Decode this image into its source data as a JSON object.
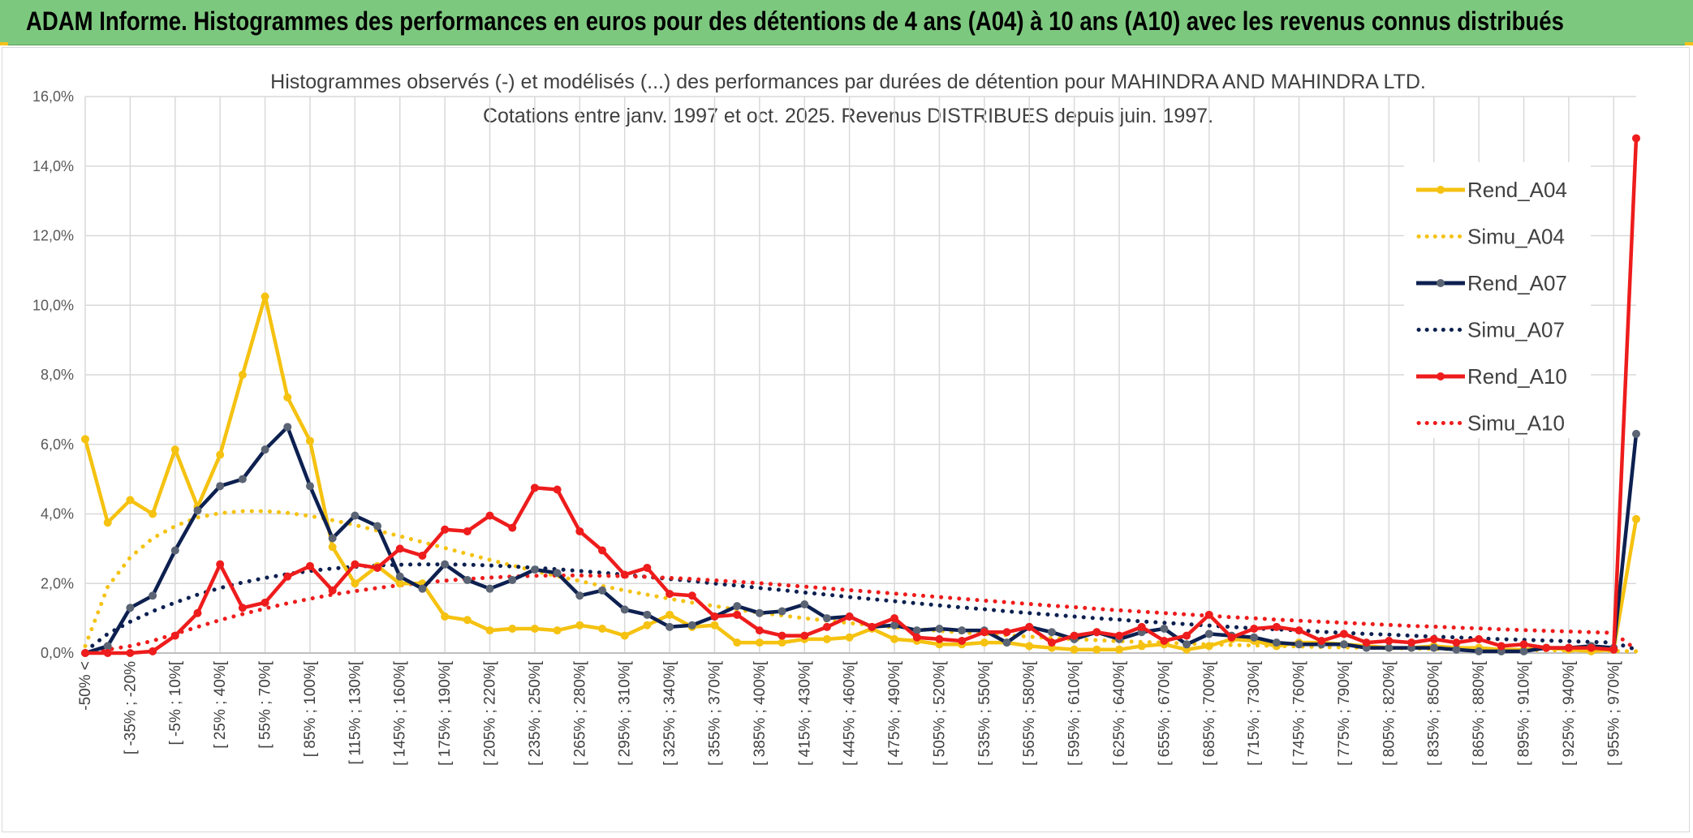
{
  "header": {
    "title": "ADAM Informe. Histogrammes des performances en euros pour des détentions de 4 ans (A04) à 10 ans (A10) avec les revenus connus distribués"
  },
  "chart_data": {
    "type": "line",
    "title": "Histogrammes observés (-) et modélisés (...) des performances par durées de détention pour MAHINDRA AND MAHINDRA LTD.",
    "subtitle": "Cotations entre janv. 1997 et oct. 2025. Revenus DISTRIBUES depuis juin. 1997.",
    "ylim": [
      0,
      16
    ],
    "yticks": [
      0,
      2,
      4,
      6,
      8,
      10,
      12,
      14,
      16
    ],
    "ytick_labels": [
      "0,0%",
      "2,0%",
      "4,0%",
      "6,0%",
      "8,0%",
      "10,0%",
      "12,0%",
      "14,0%",
      "16,0%"
    ],
    "grid": true,
    "legend_position": "right",
    "n_points": 70,
    "tick_labels": [
      {
        "i": 0,
        "label": "-50% <"
      },
      {
        "i": 2,
        "label": "[ -35% ; -20%"
      },
      {
        "i": 4,
        "label": "[ -5% ; 10%["
      },
      {
        "i": 6,
        "label": "[ 25% ; 40%["
      },
      {
        "i": 8,
        "label": "[ 55% ; 70%["
      },
      {
        "i": 10,
        "label": "[ 85% ; 100%["
      },
      {
        "i": 12,
        "label": "[ 115% ; 130%["
      },
      {
        "i": 14,
        "label": "[ 145% ; 160%["
      },
      {
        "i": 16,
        "label": "[ 175% ; 190%["
      },
      {
        "i": 18,
        "label": "[ 205% ; 220%["
      },
      {
        "i": 20,
        "label": "[ 235% ; 250%["
      },
      {
        "i": 22,
        "label": "[ 265% ; 280%["
      },
      {
        "i": 24,
        "label": "[ 295% ; 310%["
      },
      {
        "i": 26,
        "label": "[ 325% ; 340%["
      },
      {
        "i": 28,
        "label": "[ 355% ; 370%["
      },
      {
        "i": 30,
        "label": "[ 385% ; 400%["
      },
      {
        "i": 32,
        "label": "[ 415% ; 430%["
      },
      {
        "i": 34,
        "label": "[ 445% ; 460%["
      },
      {
        "i": 36,
        "label": "[ 475% ; 490%["
      },
      {
        "i": 38,
        "label": "[ 505% ; 520%["
      },
      {
        "i": 40,
        "label": "[ 535% ; 550%["
      },
      {
        "i": 42,
        "label": "[ 565% ; 580%["
      },
      {
        "i": 44,
        "label": "[ 595% ; 610%["
      },
      {
        "i": 46,
        "label": "[ 625% ; 640%["
      },
      {
        "i": 48,
        "label": "[ 655% ; 670%["
      },
      {
        "i": 50,
        "label": "[ 685% ; 700%["
      },
      {
        "i": 52,
        "label": "[ 715% ; 730%["
      },
      {
        "i": 54,
        "label": "[ 745% ; 760%["
      },
      {
        "i": 56,
        "label": "[ 775% ; 790%["
      },
      {
        "i": 58,
        "label": "[ 805% ; 820%["
      },
      {
        "i": 60,
        "label": "[ 835% ; 850%["
      },
      {
        "i": 62,
        "label": "[ 865% ; 880%["
      },
      {
        "i": 64,
        "label": "[ 895% ; 910%["
      },
      {
        "i": 66,
        "label": "[ 925% ; 940%["
      },
      {
        "i": 68,
        "label": "[ 955% ; 970%["
      }
    ],
    "series": [
      {
        "name": "Rend_A04",
        "style": "solid",
        "color": "#f5c211",
        "marker_color": "#f5c211",
        "values": [
          6.15,
          3.75,
          4.4,
          4.0,
          5.85,
          4.2,
          5.7,
          8.0,
          10.25,
          7.35,
          6.1,
          3.05,
          2.0,
          2.5,
          2.0,
          2.0,
          1.05,
          0.95,
          0.65,
          0.7,
          0.7,
          0.65,
          0.8,
          0.7,
          0.5,
          0.8,
          1.1,
          0.75,
          0.8,
          0.3,
          0.3,
          0.3,
          0.4,
          0.4,
          0.45,
          0.7,
          0.4,
          0.35,
          0.25,
          0.25,
          0.3,
          0.3,
          0.2,
          0.15,
          0.1,
          0.1,
          0.1,
          0.2,
          0.25,
          0.1,
          0.2,
          0.4,
          0.35,
          0.2,
          0.3,
          0.3,
          0.25,
          0.2,
          0.15,
          0.15,
          0.2,
          0.15,
          0.15,
          0.1,
          0.1,
          0.15,
          0.1,
          0.05,
          0.1,
          3.85
        ]
      },
      {
        "name": "Simu_A04",
        "style": "dotted",
        "color": "#f5c211",
        "values": [
          0.2,
          1.9,
          2.75,
          3.3,
          3.65,
          3.9,
          4.02,
          4.08,
          4.08,
          4.03,
          3.94,
          3.82,
          3.68,
          3.52,
          3.36,
          3.19,
          3.02,
          2.85,
          2.68,
          2.52,
          2.36,
          2.21,
          2.07,
          1.93,
          1.8,
          1.68,
          1.56,
          1.45,
          1.35,
          1.25,
          1.16,
          1.08,
          1.0,
          0.93,
          0.86,
          0.8,
          0.74,
          0.69,
          0.64,
          0.59,
          0.55,
          0.51,
          0.47,
          0.43,
          0.4,
          0.37,
          0.34,
          0.32,
          0.3,
          0.27,
          0.25,
          0.23,
          0.22,
          0.2,
          0.19,
          0.17,
          0.16,
          0.15,
          0.14,
          0.13,
          0.12,
          0.11,
          0.1,
          0.09,
          0.09,
          0.08,
          0.07,
          0.07,
          0.06,
          0.05
        ]
      },
      {
        "name": "Rend_A07",
        "style": "solid",
        "color": "#0d2050",
        "marker_color": "#5a6474",
        "values": [
          0.0,
          0.2,
          1.3,
          1.65,
          2.95,
          4.1,
          4.8,
          5.0,
          5.85,
          6.5,
          4.8,
          3.3,
          3.95,
          3.65,
          2.2,
          1.85,
          2.55,
          2.1,
          1.85,
          2.1,
          2.4,
          2.3,
          1.65,
          1.8,
          1.25,
          1.1,
          0.75,
          0.8,
          1.05,
          1.35,
          1.15,
          1.2,
          1.4,
          1.0,
          1.05,
          0.75,
          0.8,
          0.65,
          0.7,
          0.65,
          0.65,
          0.3,
          0.75,
          0.6,
          0.4,
          0.6,
          0.4,
          0.6,
          0.7,
          0.25,
          0.55,
          0.5,
          0.45,
          0.3,
          0.25,
          0.25,
          0.25,
          0.15,
          0.15,
          0.15,
          0.15,
          0.1,
          0.05,
          0.05,
          0.05,
          0.15,
          0.15,
          0.2,
          0.15,
          6.3
        ]
      },
      {
        "name": "Simu_A07",
        "style": "dotted",
        "color": "#0d2050",
        "values": [
          0.05,
          0.55,
          0.9,
          1.2,
          1.45,
          1.68,
          1.87,
          2.03,
          2.16,
          2.27,
          2.36,
          2.43,
          2.48,
          2.52,
          2.54,
          2.55,
          2.55,
          2.54,
          2.52,
          2.49,
          2.45,
          2.41,
          2.36,
          2.31,
          2.25,
          2.19,
          2.13,
          2.07,
          2.0,
          1.94,
          1.87,
          1.81,
          1.74,
          1.68,
          1.61,
          1.55,
          1.49,
          1.43,
          1.37,
          1.31,
          1.26,
          1.2,
          1.15,
          1.1,
          1.05,
          1.0,
          0.96,
          0.91,
          0.87,
          0.83,
          0.79,
          0.75,
          0.71,
          0.68,
          0.65,
          0.61,
          0.58,
          0.55,
          0.53,
          0.5,
          0.47,
          0.45,
          0.42,
          0.4,
          0.38,
          0.36,
          0.34,
          0.32,
          0.3,
          0.1
        ]
      },
      {
        "name": "Rend_A10",
        "style": "solid",
        "color": "#ee1c1c",
        "marker_color": "#ee1c1c",
        "values": [
          0.0,
          0.0,
          0.0,
          0.05,
          0.5,
          1.15,
          2.55,
          1.3,
          1.45,
          2.2,
          2.5,
          1.8,
          2.55,
          2.45,
          3.0,
          2.8,
          3.55,
          3.5,
          3.95,
          3.6,
          4.75,
          4.7,
          3.5,
          2.95,
          2.25,
          2.45,
          1.7,
          1.65,
          1.05,
          1.1,
          0.65,
          0.5,
          0.5,
          0.75,
          1.05,
          0.75,
          1.0,
          0.45,
          0.4,
          0.35,
          0.6,
          0.6,
          0.75,
          0.3,
          0.5,
          0.6,
          0.5,
          0.75,
          0.35,
          0.5,
          1.1,
          0.45,
          0.7,
          0.75,
          0.65,
          0.35,
          0.55,
          0.3,
          0.35,
          0.3,
          0.4,
          0.3,
          0.4,
          0.2,
          0.25,
          0.15,
          0.15,
          0.15,
          0.1,
          14.8
        ]
      },
      {
        "name": "Simu_A10",
        "style": "dotted",
        "color": "#ee1c1c",
        "values": [
          0.0,
          0.1,
          0.2,
          0.35,
          0.55,
          0.75,
          0.95,
          1.12,
          1.28,
          1.43,
          1.56,
          1.68,
          1.78,
          1.87,
          1.95,
          2.02,
          2.08,
          2.13,
          2.17,
          2.2,
          2.22,
          2.23,
          2.23,
          2.22,
          2.21,
          2.19,
          2.16,
          2.13,
          2.09,
          2.05,
          2.01,
          1.96,
          1.91,
          1.86,
          1.81,
          1.76,
          1.71,
          1.66,
          1.61,
          1.56,
          1.51,
          1.46,
          1.41,
          1.36,
          1.32,
          1.27,
          1.23,
          1.19,
          1.15,
          1.11,
          1.07,
          1.03,
          1.0,
          0.96,
          0.93,
          0.9,
          0.87,
          0.84,
          0.81,
          0.78,
          0.76,
          0.73,
          0.71,
          0.68,
          0.66,
          0.64,
          0.62,
          0.6,
          0.58,
          0.1
        ]
      }
    ]
  }
}
